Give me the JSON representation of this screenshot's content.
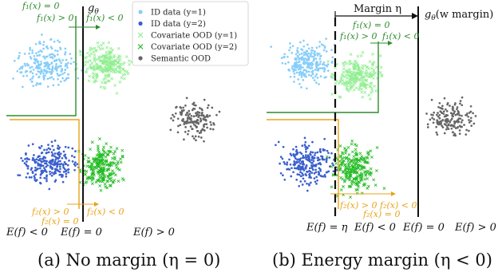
{
  "legend": {
    "entries": [
      {
        "label": "ID data (y=1)",
        "color": "#87cefa",
        "marker": "dot"
      },
      {
        "label": "ID data (y=2)",
        "color": "#3a5fcd",
        "marker": "dot"
      },
      {
        "label": "Covariate OOD (y=1)",
        "color": "#90ee90",
        "marker": "cross"
      },
      {
        "label": "Covariate OOD (y=2)",
        "color": "#22bb22",
        "marker": "cross"
      },
      {
        "label": "Semantic OOD",
        "color": "#666666",
        "marker": "dot"
      }
    ]
  },
  "colors": {
    "id_y1": "#87cefa",
    "id_y2": "#3a5fcd",
    "cov_y1": "#90ee90",
    "cov_y2": "#22bb22",
    "semantic": "#666666",
    "f1_line": "#2e8b2e",
    "f2_line": "#e8a317",
    "boundary": "#111111"
  },
  "panel_a": {
    "caption": "(a) No margin (η = 0)",
    "g_label": "g",
    "g_sub": "θ",
    "f1_eq": "f₁(x) = 0",
    "f1_pos": "f₁(x) > 0",
    "f1_neg": "f₁(x) < 0",
    "f2_pos": "f₂(x) > 0",
    "f2_neg": "f₂(x) < 0",
    "f2_eq": "f₂(x) = 0",
    "energy_lt": "E(f) < 0",
    "energy_eq": "E(f) = 0",
    "energy_gt": "E(f) > 0"
  },
  "panel_b": {
    "caption": "(b) Energy margin (η < 0)",
    "margin_label": "Margin η",
    "g_label": "g",
    "g_sub": "θ",
    "g_suffix": "(w margin)",
    "f1_eq": "f₁(x) = 0",
    "f1_pos": "f₁(x) > 0",
    "f1_neg": "f₁(x) < 0",
    "f2_pos": "f₂(x) > 0",
    "f2_neg": "f₂(x) < 0",
    "f2_eq": "f₂(x) = 0",
    "energy_eta": "E(f) = η",
    "energy_lt": "E(f) < 0",
    "energy_eq": "E(f) = 0",
    "energy_gt": "E(f) > 0"
  }
}
